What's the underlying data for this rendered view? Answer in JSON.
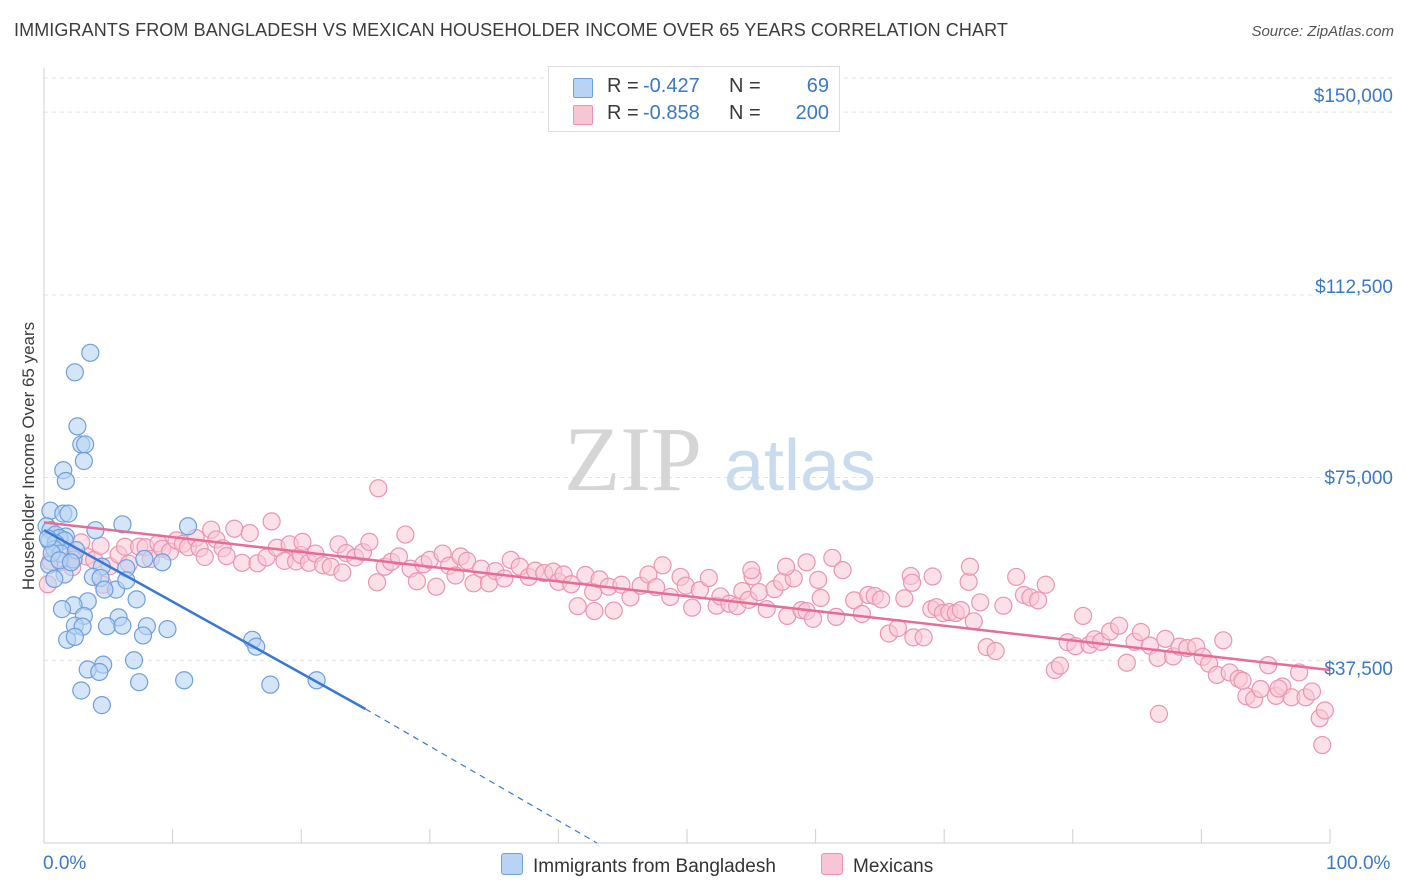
{
  "header": {
    "title": "IMMIGRANTS FROM BANGLADESH VS MEXICAN HOUSEHOLDER INCOME OVER 65 YEARS CORRELATION CHART",
    "source": "Source: ZipAtlas.com"
  },
  "watermark": {
    "part1": "ZIP",
    "part2": "atlas"
  },
  "legend_top": {
    "rows": [
      {
        "r_label": "R =",
        "r_value": "-0.427",
        "n_label": "N =",
        "n_value": "69"
      },
      {
        "r_label": "R =",
        "r_value": "-0.858",
        "n_label": "N =",
        "n_value": "200"
      }
    ]
  },
  "legend_bottom": {
    "items": [
      "Immigrants from Bangladesh",
      "Mexicans"
    ]
  },
  "chart_data": {
    "type": "scatter",
    "title": "IMMIGRANTS FROM BANGLADESH VS MEXICAN HOUSEHOLDER INCOME OVER 65 YEARS CORRELATION CHART",
    "xlabel": "",
    "ylabel": "Householder Income Over 65 years",
    "xlim": [
      0,
      100
    ],
    "ylim": [
      0,
      157000
    ],
    "x_tick_labels": [
      "0.0%",
      "100.0%"
    ],
    "y_ticks": [
      37500,
      75000,
      112500,
      150000
    ],
    "y_tick_labels": [
      "$37,500",
      "$75,000",
      "$112,500",
      "$150,000"
    ],
    "grid": true,
    "legend_position": "top-center",
    "colors": {
      "blue_fill": "#b8d3f3",
      "blue_stroke": "#6f9fdd",
      "blue_line": "#3878d4",
      "pink_fill": "#f7c6d5",
      "pink_stroke": "#ec94b1",
      "pink_line": "#e76c98",
      "tick_text": "#3a78c9",
      "grid": "#e3e3e3"
    },
    "series": [
      {
        "name": "Immigrants from Bangladesh",
        "trend": {
          "x0": 0,
          "y0": 64200,
          "x1": 25,
          "y1": 27500,
          "dash_to_x": 43,
          "dash_to_y": 0
        },
        "points": [
          [
            3.6,
            100600
          ],
          [
            2.4,
            96600
          ],
          [
            2.6,
            85500
          ],
          [
            2.9,
            81800
          ],
          [
            3.2,
            81800
          ],
          [
            3.1,
            78400
          ],
          [
            1.5,
            76500
          ],
          [
            1.7,
            74300
          ],
          [
            0.5,
            68200
          ],
          [
            1.5,
            67600
          ],
          [
            1.9,
            67600
          ],
          [
            0.2,
            65000
          ],
          [
            0.5,
            64200
          ],
          [
            0.9,
            63300
          ],
          [
            1.7,
            62900
          ],
          [
            1.2,
            62600
          ],
          [
            1.6,
            62100
          ],
          [
            0.4,
            62000
          ],
          [
            0.9,
            61500
          ],
          [
            0.8,
            60300
          ],
          [
            4.0,
            64200
          ],
          [
            6.1,
            65400
          ],
          [
            11.2,
            65000
          ],
          [
            0.4,
            57100
          ],
          [
            1.3,
            59400
          ],
          [
            2.3,
            58200
          ],
          [
            2.5,
            60100
          ],
          [
            4.5,
            56700
          ],
          [
            6.4,
            56400
          ],
          [
            7.8,
            58300
          ],
          [
            9.2,
            57600
          ],
          [
            1.6,
            55100
          ],
          [
            0.8,
            54200
          ],
          [
            3.8,
            54600
          ],
          [
            4.4,
            54400
          ],
          [
            7.2,
            50000
          ],
          [
            5.6,
            52000
          ],
          [
            4.7,
            52000
          ],
          [
            6.4,
            53900
          ],
          [
            3.4,
            49600
          ],
          [
            2.3,
            48800
          ],
          [
            1.4,
            48000
          ],
          [
            3.1,
            46600
          ],
          [
            5.8,
            46300
          ],
          [
            2.4,
            44600
          ],
          [
            3.0,
            44400
          ],
          [
            4.9,
            44500
          ],
          [
            6.1,
            44600
          ],
          [
            8.0,
            44500
          ],
          [
            9.6,
            43900
          ],
          [
            7.7,
            42600
          ],
          [
            1.8,
            41700
          ],
          [
            2.4,
            42300
          ],
          [
            16.2,
            41700
          ],
          [
            16.5,
            40300
          ],
          [
            4.6,
            36600
          ],
          [
            7.0,
            37500
          ],
          [
            3.4,
            35600
          ],
          [
            4.3,
            35100
          ],
          [
            2.9,
            31300
          ],
          [
            7.4,
            33000
          ],
          [
            10.9,
            33400
          ],
          [
            17.6,
            32500
          ],
          [
            21.2,
            33400
          ],
          [
            4.5,
            28300
          ],
          [
            0.6,
            59500
          ],
          [
            1.2,
            58000
          ],
          [
            2.1,
            57600
          ],
          [
            0.3,
            62500
          ]
        ]
      },
      {
        "name": "Mexicans",
        "trend": {
          "x0": 0,
          "y0": 65800,
          "x1": 100,
          "y1": 35500
        },
        "points": [
          [
            0.5,
            57800
          ],
          [
            0.8,
            60400
          ],
          [
            1.3,
            57600
          ],
          [
            1.8,
            60400
          ],
          [
            2.3,
            58700
          ],
          [
            2.9,
            61700
          ],
          [
            3.3,
            58800
          ],
          [
            3.9,
            58100
          ],
          [
            4.4,
            61000
          ],
          [
            5.1,
            56800
          ],
          [
            5.8,
            59200
          ],
          [
            6.3,
            60800
          ],
          [
            6.6,
            57300
          ],
          [
            7.4,
            60800
          ],
          [
            7.9,
            60700
          ],
          [
            8.3,
            58300
          ],
          [
            8.9,
            61500
          ],
          [
            9.2,
            60400
          ],
          [
            9.8,
            59800
          ],
          [
            10.3,
            62100
          ],
          [
            10.8,
            61400
          ],
          [
            11.2,
            60700
          ],
          [
            11.8,
            62600
          ],
          [
            12.1,
            60500
          ],
          [
            12.5,
            58700
          ],
          [
            13.0,
            64300
          ],
          [
            13.4,
            62300
          ],
          [
            13.9,
            60500
          ],
          [
            14.2,
            58900
          ],
          [
            14.8,
            64500
          ],
          [
            15.4,
            57500
          ],
          [
            16.0,
            63600
          ],
          [
            16.6,
            57400
          ],
          [
            17.3,
            58600
          ],
          [
            17.7,
            66000
          ],
          [
            18.1,
            60600
          ],
          [
            18.7,
            57900
          ],
          [
            19.1,
            61300
          ],
          [
            19.6,
            57800
          ],
          [
            20.0,
            59100
          ],
          [
            20.6,
            57500
          ],
          [
            21.1,
            59400
          ],
          [
            21.7,
            57000
          ],
          [
            22.3,
            56700
          ],
          [
            22.9,
            61300
          ],
          [
            23.5,
            59500
          ],
          [
            24.2,
            58600
          ],
          [
            24.8,
            59700
          ],
          [
            25.3,
            61800
          ],
          [
            25.9,
            53500
          ],
          [
            26.5,
            56700
          ],
          [
            27.0,
            57700
          ],
          [
            27.6,
            58800
          ],
          [
            28.1,
            63300
          ],
          [
            28.5,
            56300
          ],
          [
            29.0,
            53700
          ],
          [
            29.5,
            57200
          ],
          [
            30.0,
            58100
          ],
          [
            30.5,
            52600
          ],
          [
            31.0,
            59400
          ],
          [
            31.5,
            56900
          ],
          [
            32.0,
            54900
          ],
          [
            32.4,
            58800
          ],
          [
            32.9,
            57900
          ],
          [
            33.4,
            53300
          ],
          [
            34.0,
            56300
          ],
          [
            34.6,
            53300
          ],
          [
            35.1,
            55800
          ],
          [
            35.8,
            54300
          ],
          [
            36.3,
            58100
          ],
          [
            37.0,
            56700
          ],
          [
            37.7,
            54600
          ],
          [
            38.2,
            55900
          ],
          [
            38.9,
            55400
          ],
          [
            39.6,
            55700
          ],
          [
            40.0,
            53600
          ],
          [
            40.4,
            55100
          ],
          [
            41.0,
            53100
          ],
          [
            41.5,
            48600
          ],
          [
            42.1,
            55000
          ],
          [
            42.7,
            51500
          ],
          [
            43.2,
            54100
          ],
          [
            43.9,
            52600
          ],
          [
            44.3,
            47700
          ],
          [
            44.9,
            53000
          ],
          [
            45.6,
            50400
          ],
          [
            46.4,
            52800
          ],
          [
            47.0,
            55100
          ],
          [
            47.6,
            52500
          ],
          [
            48.1,
            57000
          ],
          [
            48.7,
            50500
          ],
          [
            49.5,
            54600
          ],
          [
            49.9,
            52800
          ],
          [
            50.4,
            48300
          ],
          [
            51.0,
            51900
          ],
          [
            51.7,
            54400
          ],
          [
            52.3,
            48700
          ],
          [
            52.6,
            50600
          ],
          [
            53.3,
            49100
          ],
          [
            53.9,
            48600
          ],
          [
            54.3,
            51700
          ],
          [
            54.8,
            49900
          ],
          [
            55.6,
            51500
          ],
          [
            56.2,
            48000
          ],
          [
            56.8,
            52100
          ],
          [
            57.4,
            53600
          ],
          [
            57.8,
            46600
          ],
          [
            58.3,
            54300
          ],
          [
            58.9,
            47800
          ],
          [
            59.3,
            47600
          ],
          [
            59.8,
            46000
          ],
          [
            60.4,
            50300
          ],
          [
            61.3,
            58500
          ],
          [
            61.6,
            46400
          ],
          [
            62.1,
            56000
          ],
          [
            63.0,
            49800
          ],
          [
            63.6,
            47000
          ],
          [
            64.1,
            50900
          ],
          [
            64.6,
            50700
          ],
          [
            65.1,
            50000
          ],
          [
            65.7,
            43000
          ],
          [
            66.4,
            44100
          ],
          [
            66.9,
            50200
          ],
          [
            67.4,
            54800
          ],
          [
            67.6,
            42200
          ],
          [
            68.4,
            42200
          ],
          [
            69.0,
            48000
          ],
          [
            69.4,
            48400
          ],
          [
            69.9,
            47200
          ],
          [
            70.4,
            47400
          ],
          [
            70.9,
            47200
          ],
          [
            71.3,
            47800
          ],
          [
            71.9,
            53600
          ],
          [
            72.3,
            45500
          ],
          [
            72.8,
            49400
          ],
          [
            73.3,
            40200
          ],
          [
            74.0,
            39400
          ],
          [
            74.6,
            48700
          ],
          [
            75.6,
            54600
          ],
          [
            76.2,
            50900
          ],
          [
            76.7,
            50400
          ],
          [
            77.3,
            49800
          ],
          [
            77.9,
            53000
          ],
          [
            78.6,
            35500
          ],
          [
            79.0,
            36400
          ],
          [
            79.6,
            41200
          ],
          [
            80.2,
            40400
          ],
          [
            80.8,
            46600
          ],
          [
            81.3,
            40700
          ],
          [
            81.7,
            41800
          ],
          [
            82.2,
            41300
          ],
          [
            82.9,
            43400
          ],
          [
            83.6,
            44600
          ],
          [
            84.2,
            37000
          ],
          [
            84.8,
            41300
          ],
          [
            85.3,
            43300
          ],
          [
            86.0,
            40500
          ],
          [
            86.6,
            38000
          ],
          [
            87.2,
            41900
          ],
          [
            87.8,
            38300
          ],
          [
            88.3,
            40300
          ],
          [
            88.9,
            40000
          ],
          [
            89.6,
            40300
          ],
          [
            90.1,
            38200
          ],
          [
            90.6,
            36800
          ],
          [
            91.2,
            34500
          ],
          [
            91.7,
            41600
          ],
          [
            92.2,
            35000
          ],
          [
            92.9,
            33700
          ],
          [
            93.5,
            30100
          ],
          [
            94.1,
            29500
          ],
          [
            94.6,
            31600
          ],
          [
            95.2,
            36500
          ],
          [
            95.8,
            30200
          ],
          [
            96.3,
            32100
          ],
          [
            97.0,
            29900
          ],
          [
            97.6,
            35000
          ],
          [
            98.1,
            29900
          ],
          [
            98.6,
            31100
          ],
          [
            99.2,
            25600
          ],
          [
            99.6,
            27200
          ],
          [
            0.3,
            53100
          ],
          [
            2.2,
            56600
          ],
          [
            4.6,
            53000
          ],
          [
            55.1,
            54700
          ],
          [
            42.8,
            47600
          ],
          [
            96.0,
            31700
          ],
          [
            86.7,
            26500
          ],
          [
            93.2,
            33300
          ],
          [
            99.4,
            20100
          ],
          [
            55.0,
            56000
          ],
          [
            57.7,
            56700
          ],
          [
            20.1,
            61800
          ],
          [
            23.2,
            55500
          ],
          [
            26.0,
            72800
          ],
          [
            59.3,
            57600
          ],
          [
            60.2,
            54000
          ],
          [
            67.5,
            53400
          ],
          [
            69.1,
            54700
          ],
          [
            72.0,
            56700
          ]
        ]
      }
    ]
  }
}
